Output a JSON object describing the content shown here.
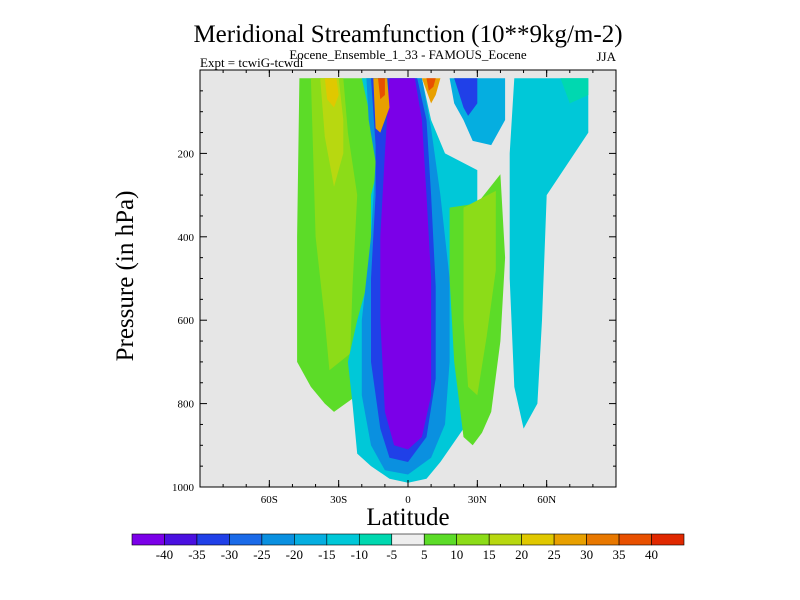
{
  "chart_data": {
    "type": "heatmap",
    "title": "Meridional Streamfunction (10**9kg/m-2)",
    "subtitle_center": "Eocene_Ensemble_1_33 - FAMOUS_Eocene",
    "subtitle_left": "Expt = tcwiG-tcwdi",
    "subtitle_right": "JJA",
    "xlabel": "Latitude",
    "ylabel": "Pressure (in hPa)",
    "xlim": [
      -90,
      90
    ],
    "ylim": [
      1000,
      0
    ],
    "x_ticks": [
      {
        "value": -60,
        "label": "60S"
      },
      {
        "value": -30,
        "label": "30S"
      },
      {
        "value": 0,
        "label": "0"
      },
      {
        "value": 30,
        "label": "30N"
      },
      {
        "value": 60,
        "label": "60N"
      }
    ],
    "y_ticks": [
      {
        "value": 200,
        "label": "200"
      },
      {
        "value": 400,
        "label": "400"
      },
      {
        "value": 600,
        "label": "600"
      },
      {
        "value": 800,
        "label": "800"
      },
      {
        "value": 1000,
        "label": "1000"
      }
    ],
    "missing_color": "#e6e6e6",
    "colorbar": {
      "levels": [
        "-40",
        "-35",
        "-30",
        "-25",
        "-20",
        "-15",
        "-10",
        "-5",
        "5",
        "10",
        "15",
        "20",
        "25",
        "30",
        "35",
        "40"
      ],
      "colors": [
        "#7b00e8",
        "#4a10e0",
        "#2040e8",
        "#1a6ae8",
        "#0a90e0",
        "#05aee0",
        "#00c8d8",
        "#00d8b0",
        "#eeeeee",
        "#5cdc28",
        "#8cdc18",
        "#b8d810",
        "#e0c800",
        "#e8a000",
        "#e87800",
        "#e85000",
        "#e02800"
      ]
    },
    "regions": [
      {
        "name": "field-positive-sh-outer",
        "bin": 9,
        "poly": [
          [
            -47,
            20
          ],
          [
            -12,
            20
          ],
          [
            -12,
            210
          ],
          [
            -8,
            320
          ],
          [
            -10,
            520
          ],
          [
            -18,
            700
          ],
          [
            -22,
            780
          ],
          [
            -32,
            820
          ],
          [
            -36,
            800
          ],
          [
            -42,
            760
          ],
          [
            -48,
            700
          ],
          [
            -48,
            400
          ]
        ]
      },
      {
        "name": "field-positive-sh-mid",
        "bin": 10,
        "poly": [
          [
            -42,
            20
          ],
          [
            -28,
            20
          ],
          [
            -26,
            150
          ],
          [
            -22,
            300
          ],
          [
            -24,
            520
          ],
          [
            -25,
            680
          ],
          [
            -34,
            720
          ],
          [
            -36,
            600
          ],
          [
            -40,
            400
          ]
        ]
      },
      {
        "name": "field-positive-sh-core",
        "bin": 11,
        "poly": [
          [
            -38,
            20
          ],
          [
            -30,
            20
          ],
          [
            -28,
            120
          ],
          [
            -28,
            200
          ],
          [
            -32,
            280
          ],
          [
            -36,
            160
          ]
        ]
      },
      {
        "name": "field-positive-sh-peak",
        "bin": 12,
        "poly": [
          [
            -36,
            20
          ],
          [
            -31,
            20
          ],
          [
            -30,
            60
          ],
          [
            -32,
            90
          ],
          [
            -35,
            70
          ]
        ]
      },
      {
        "name": "field-negative-outer",
        "bin": 6,
        "poly": [
          [
            -20,
            20
          ],
          [
            -12,
            20
          ],
          [
            -4,
            20
          ],
          [
            0,
            20
          ],
          [
            6,
            20
          ],
          [
            10,
            120
          ],
          [
            16,
            200
          ],
          [
            30,
            240
          ],
          [
            30,
            500
          ],
          [
            26,
            700
          ],
          [
            30,
            820
          ],
          [
            24,
            860
          ],
          [
            14,
            940
          ],
          [
            8,
            980
          ],
          [
            0,
            990
          ],
          [
            -8,
            980
          ],
          [
            -16,
            950
          ],
          [
            -22,
            920
          ],
          [
            -24,
            800
          ],
          [
            -26,
            700
          ],
          [
            -22,
            600
          ],
          [
            -16,
            480
          ],
          [
            -16,
            300
          ],
          [
            -12,
            210
          ],
          [
            -16,
            120
          ]
        ]
      },
      {
        "name": "field-negative-ring",
        "bin": 4,
        "poly": [
          [
            -18,
            20
          ],
          [
            -4,
            20
          ],
          [
            6,
            20
          ],
          [
            10,
            140
          ],
          [
            14,
            300
          ],
          [
            18,
            500
          ],
          [
            18,
            700
          ],
          [
            16,
            850
          ],
          [
            10,
            930
          ],
          [
            0,
            970
          ],
          [
            -10,
            960
          ],
          [
            -16,
            900
          ],
          [
            -20,
            780
          ],
          [
            -20,
            600
          ],
          [
            -16,
            400
          ],
          [
            -14,
            220
          ],
          [
            -17,
            120
          ]
        ]
      },
      {
        "name": "field-negative-inner",
        "bin": 2,
        "poly": [
          [
            -16,
            20
          ],
          [
            -4,
            20
          ],
          [
            4,
            20
          ],
          [
            8,
            120
          ],
          [
            10,
            300
          ],
          [
            12,
            520
          ],
          [
            12,
            740
          ],
          [
            8,
            880
          ],
          [
            0,
            940
          ],
          [
            -8,
            930
          ],
          [
            -12,
            860
          ],
          [
            -16,
            700
          ],
          [
            -16,
            500
          ],
          [
            -14,
            300
          ],
          [
            -14,
            180
          ]
        ]
      },
      {
        "name": "field-negative-core",
        "bin": 0,
        "poly": [
          [
            -8,
            20
          ],
          [
            3,
            20
          ],
          [
            6,
            120
          ],
          [
            8,
            300
          ],
          [
            10,
            500
          ],
          [
            10,
            780
          ],
          [
            6,
            880
          ],
          [
            0,
            910
          ],
          [
            -6,
            900
          ],
          [
            -10,
            820
          ],
          [
            -12,
            600
          ],
          [
            -12,
            400
          ],
          [
            -10,
            200
          ]
        ]
      },
      {
        "name": "field-positive-sh-jet",
        "bin": 13,
        "poly": [
          [
            -15,
            20
          ],
          [
            -9,
            20
          ],
          [
            -8,
            90
          ],
          [
            -12,
            150
          ],
          [
            -14,
            140
          ]
        ]
      },
      {
        "name": "field-positive-sh-jet-core",
        "bin": 15,
        "poly": [
          [
            -13,
            20
          ],
          [
            -10,
            20
          ],
          [
            -10,
            60
          ],
          [
            -12,
            70
          ]
        ]
      },
      {
        "name": "field-positive-nh-jet",
        "bin": 13,
        "poly": [
          [
            6,
            20
          ],
          [
            14,
            20
          ],
          [
            12,
            60
          ],
          [
            10,
            80
          ]
        ]
      },
      {
        "name": "field-positive-nh-jet-core",
        "bin": 15,
        "poly": [
          [
            8,
            20
          ],
          [
            12,
            20
          ],
          [
            11,
            40
          ],
          [
            9,
            50
          ]
        ]
      },
      {
        "name": "field-negative-nh-ring",
        "bin": 5,
        "poly": [
          [
            18,
            20
          ],
          [
            42,
            20
          ],
          [
            42,
            120
          ],
          [
            36,
            180
          ],
          [
            28,
            170
          ],
          [
            24,
            120
          ],
          [
            20,
            80
          ]
        ]
      },
      {
        "name": "field-negative-nh-core",
        "bin": 2,
        "poly": [
          [
            20,
            20
          ],
          [
            30,
            20
          ],
          [
            30,
            80
          ],
          [
            26,
            110
          ],
          [
            24,
            90
          ]
        ]
      },
      {
        "name": "field-negative-nh-outer",
        "bin": 6,
        "poly": [
          [
            46,
            20
          ],
          [
            78,
            20
          ],
          [
            78,
            150
          ],
          [
            60,
            300
          ],
          [
            58,
            600
          ],
          [
            56,
            800
          ],
          [
            50,
            860
          ],
          [
            46,
            760
          ],
          [
            44,
            500
          ],
          [
            44,
            200
          ]
        ]
      },
      {
        "name": "field-negative-nh-edge",
        "bin": 7,
        "poly": [
          [
            66,
            20
          ],
          [
            78,
            20
          ],
          [
            78,
            60
          ],
          [
            70,
            80
          ]
        ]
      },
      {
        "name": "field-positive-nh-lower",
        "bin": 9,
        "poly": [
          [
            18,
            330
          ],
          [
            30,
            320
          ],
          [
            40,
            250
          ],
          [
            42,
            450
          ],
          [
            40,
            650
          ],
          [
            36,
            820
          ],
          [
            32,
            870
          ],
          [
            28,
            900
          ],
          [
            24,
            880
          ],
          [
            20,
            700
          ],
          [
            18,
            500
          ]
        ]
      },
      {
        "name": "field-positive-nh-lower-core",
        "bin": 10,
        "poly": [
          [
            24,
            330
          ],
          [
            38,
            290
          ],
          [
            38,
            480
          ],
          [
            34,
            640
          ],
          [
            30,
            780
          ],
          [
            26,
            760
          ],
          [
            24,
            600
          ]
        ]
      }
    ]
  }
}
